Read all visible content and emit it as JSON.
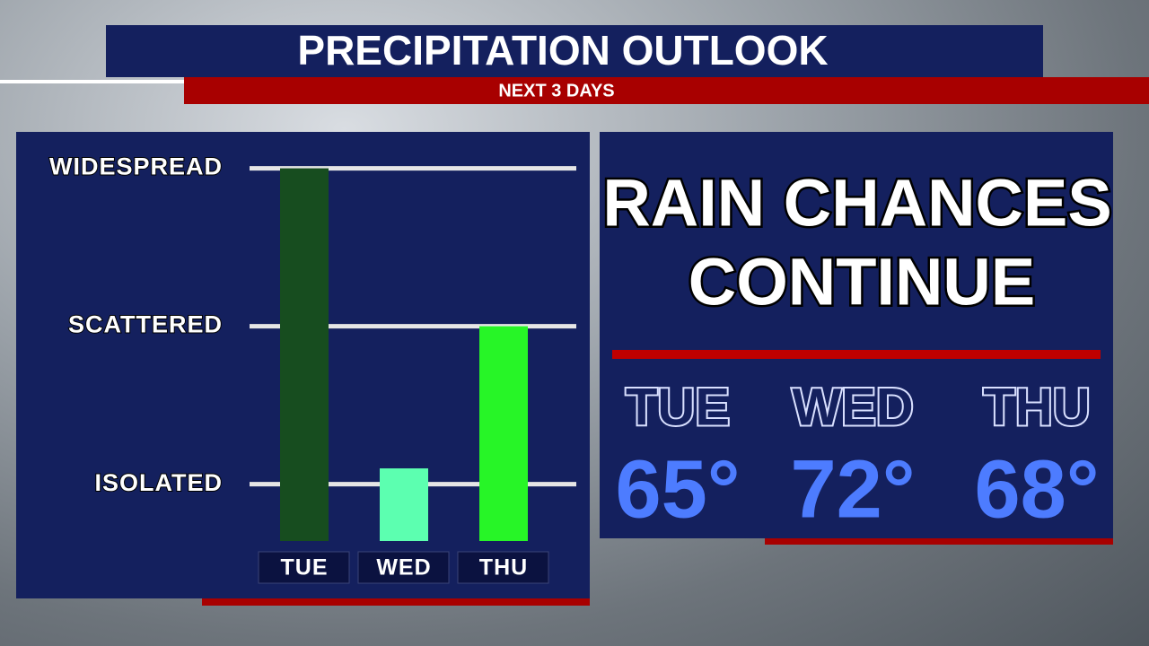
{
  "header": {
    "title": "PRECIPITATION OUTLOOK",
    "subtitle": "NEXT 3 DAYS"
  },
  "chart_data": {
    "type": "bar",
    "categories": [
      "TUE",
      "WED",
      "THU"
    ],
    "values": [
      3,
      1.1,
      2
    ],
    "colors": [
      "#174d1f",
      "#5cffb0",
      "#27f527"
    ],
    "ylim": [
      0.64,
      3.1
    ],
    "yticks": [
      {
        "value": 1,
        "label": "ISOLATED"
      },
      {
        "value": 2,
        "label": "SCATTERED"
      },
      {
        "value": 3,
        "label": "WIDESPREAD"
      }
    ],
    "grid": true
  },
  "panel": {
    "headline": [
      "RAIN CHANCES",
      "CONTINUE"
    ],
    "days": [
      {
        "day": "TUE",
        "temp": "65°"
      },
      {
        "day": "WED",
        "temp": "72°"
      },
      {
        "day": "THU",
        "temp": "68°"
      }
    ]
  }
}
